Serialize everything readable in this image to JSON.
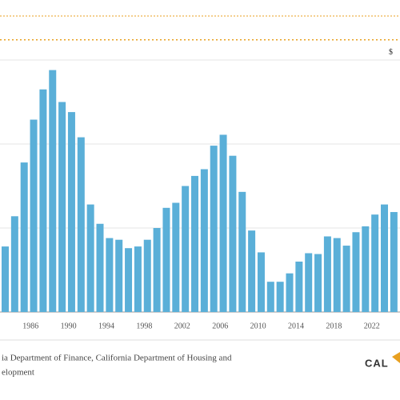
{
  "chart_data": {
    "type": "bar",
    "categories": [
      null,
      null,
      "1986",
      null,
      null,
      null,
      "1990",
      null,
      null,
      null,
      "1994",
      null,
      null,
      null,
      "1998",
      null,
      null,
      null,
      "2002",
      null,
      null,
      null,
      "2006",
      null,
      null,
      null,
      "2010",
      null,
      null,
      null,
      "2014",
      null,
      null,
      null,
      "2018",
      null,
      null,
      null,
      "2022",
      null,
      null,
      null
    ],
    "values": [
      78,
      114,
      178,
      229,
      265,
      288,
      250,
      238,
      208,
      128,
      105,
      88,
      86,
      76,
      78,
      86,
      100,
      124,
      130,
      150,
      162,
      170,
      198,
      211,
      186,
      143,
      97,
      71,
      36,
      36,
      46,
      60,
      70,
      69,
      90,
      88,
      79,
      95,
      102,
      116,
      128,
      119
    ],
    "color": "#5aafd8",
    "ylim": [
      0,
      340
    ],
    "yticks": [
      100,
      200,
      300
    ],
    "grid": true,
    "target_line": {
      "value": 324,
      "label": "$",
      "color": "#e8a020"
    },
    "source": [
      "ia Department of Finance, California Department of Housing and",
      "elopment"
    ],
    "logo": "CAL"
  }
}
